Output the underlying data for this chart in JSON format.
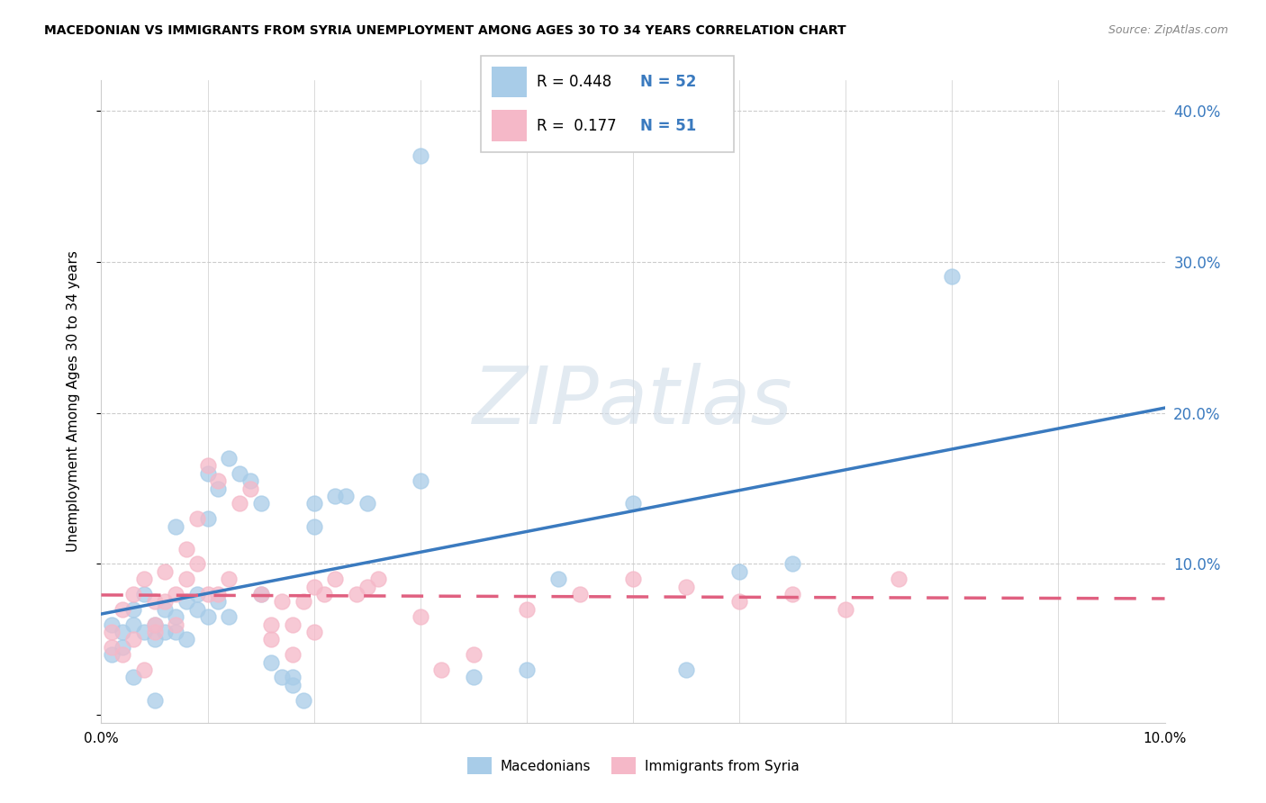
{
  "title": "MACEDONIAN VS IMMIGRANTS FROM SYRIA UNEMPLOYMENT AMONG AGES 30 TO 34 YEARS CORRELATION CHART",
  "source": "Source: ZipAtlas.com",
  "ylabel": "Unemployment Among Ages 30 to 34 years",
  "xlim": [
    0.0,
    0.1
  ],
  "ylim": [
    -0.005,
    0.42
  ],
  "ytick_vals": [
    0.0,
    0.1,
    0.2,
    0.3,
    0.4
  ],
  "ytick_labels_right": [
    "",
    "10.0%",
    "20.0%",
    "30.0%",
    "40.0%"
  ],
  "xtick_vals": [
    0.0,
    0.1
  ],
  "xtick_labels": [
    "0.0%",
    "10.0%"
  ],
  "legend_macedonians": "Macedonians",
  "legend_syria": "Immigrants from Syria",
  "R_mac": 0.448,
  "N_mac": 52,
  "R_syria": 0.177,
  "N_syria": 51,
  "blue_scatter": "#a8cce8",
  "pink_scatter": "#f5b8c8",
  "blue_line": "#3a7abf",
  "pink_line": "#e06080",
  "blue_text": "#3a7abf",
  "grid_color": "#cccccc",
  "watermark_color": "#d0dce8",
  "macedonians_x": [
    0.001,
    0.001,
    0.002,
    0.002,
    0.003,
    0.003,
    0.003,
    0.004,
    0.004,
    0.005,
    0.005,
    0.005,
    0.006,
    0.006,
    0.007,
    0.007,
    0.007,
    0.008,
    0.008,
    0.009,
    0.009,
    0.01,
    0.01,
    0.01,
    0.011,
    0.011,
    0.012,
    0.012,
    0.013,
    0.014,
    0.015,
    0.015,
    0.016,
    0.017,
    0.018,
    0.018,
    0.019,
    0.02,
    0.02,
    0.022,
    0.023,
    0.025,
    0.03,
    0.03,
    0.035,
    0.04,
    0.043,
    0.05,
    0.055,
    0.06,
    0.065,
    0.08
  ],
  "macedonians_y": [
    0.04,
    0.06,
    0.045,
    0.055,
    0.025,
    0.06,
    0.07,
    0.055,
    0.08,
    0.01,
    0.05,
    0.06,
    0.055,
    0.07,
    0.055,
    0.065,
    0.125,
    0.05,
    0.075,
    0.07,
    0.08,
    0.065,
    0.13,
    0.16,
    0.075,
    0.15,
    0.065,
    0.17,
    0.16,
    0.155,
    0.08,
    0.14,
    0.035,
    0.025,
    0.025,
    0.02,
    0.01,
    0.125,
    0.14,
    0.145,
    0.145,
    0.14,
    0.155,
    0.37,
    0.025,
    0.03,
    0.09,
    0.14,
    0.03,
    0.095,
    0.1,
    0.29
  ],
  "syria_x": [
    0.001,
    0.001,
    0.002,
    0.002,
    0.003,
    0.003,
    0.004,
    0.004,
    0.005,
    0.005,
    0.005,
    0.006,
    0.006,
    0.007,
    0.007,
    0.008,
    0.008,
    0.009,
    0.009,
    0.01,
    0.01,
    0.011,
    0.011,
    0.012,
    0.013,
    0.014,
    0.015,
    0.016,
    0.016,
    0.017,
    0.018,
    0.018,
    0.019,
    0.02,
    0.02,
    0.021,
    0.022,
    0.024,
    0.025,
    0.026,
    0.03,
    0.032,
    0.035,
    0.04,
    0.045,
    0.05,
    0.055,
    0.06,
    0.065,
    0.07,
    0.075
  ],
  "syria_y": [
    0.045,
    0.055,
    0.04,
    0.07,
    0.05,
    0.08,
    0.03,
    0.09,
    0.055,
    0.06,
    0.075,
    0.075,
    0.095,
    0.06,
    0.08,
    0.09,
    0.11,
    0.13,
    0.1,
    0.08,
    0.165,
    0.08,
    0.155,
    0.09,
    0.14,
    0.15,
    0.08,
    0.05,
    0.06,
    0.075,
    0.04,
    0.06,
    0.075,
    0.055,
    0.085,
    0.08,
    0.09,
    0.08,
    0.085,
    0.09,
    0.065,
    0.03,
    0.04,
    0.07,
    0.08,
    0.09,
    0.085,
    0.075,
    0.08,
    0.07,
    0.09
  ]
}
